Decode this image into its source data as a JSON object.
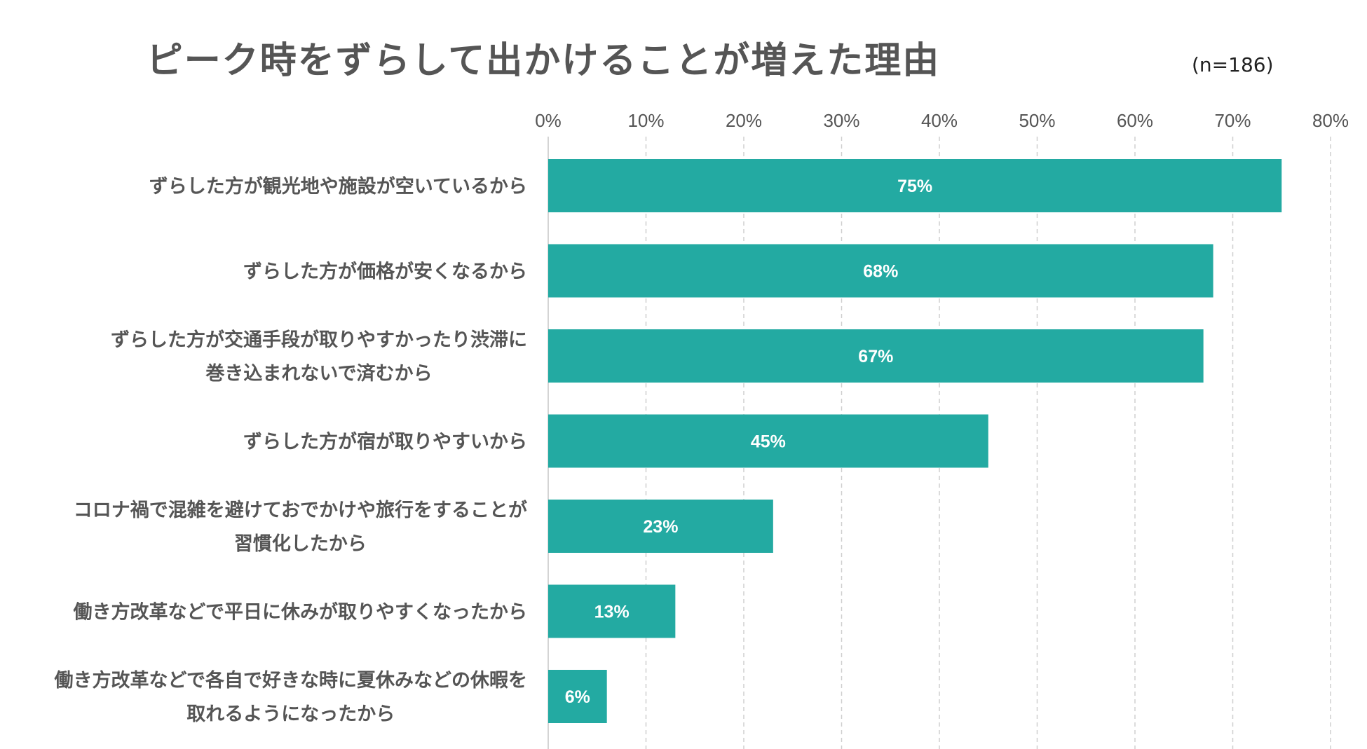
{
  "chart_data": {
    "type": "bar",
    "orientation": "horizontal",
    "title": "ピーク時をずらして出かけることが増えた理由",
    "sample_note": "(n=186)",
    "categories": [
      [
        "ずらした方が観光地や施設が空いているから"
      ],
      [
        "ずらした方が価格が安くなるから"
      ],
      [
        "ずらした方が交通手段が取りやすかったり渋滞に",
        "巻き込まれないで済むから"
      ],
      [
        "ずらした方が宿が取りやすいから"
      ],
      [
        "コロナ禍で混雑を避けておでかけや旅行をすることが",
        "習慣化したから"
      ],
      [
        "働き方改革などで平日に休みが取りやすくなったから"
      ],
      [
        "働き方改革などで各自で好きな時に夏休みなどの休暇を",
        "取れるようになったから"
      ]
    ],
    "values": [
      75,
      68,
      67,
      45,
      23,
      13,
      6
    ],
    "value_labels": [
      "75%",
      "68%",
      "67%",
      "45%",
      "23%",
      "13%",
      "6%"
    ],
    "xlim": [
      0,
      80
    ],
    "x_ticks": [
      0,
      10,
      20,
      30,
      40,
      50,
      60,
      70,
      80
    ],
    "x_tick_labels": [
      "0%",
      "10%",
      "20%",
      "30%",
      "40%",
      "50%",
      "60%",
      "70%",
      "80%"
    ],
    "grid": true,
    "bar_color": "#23aaa2"
  }
}
